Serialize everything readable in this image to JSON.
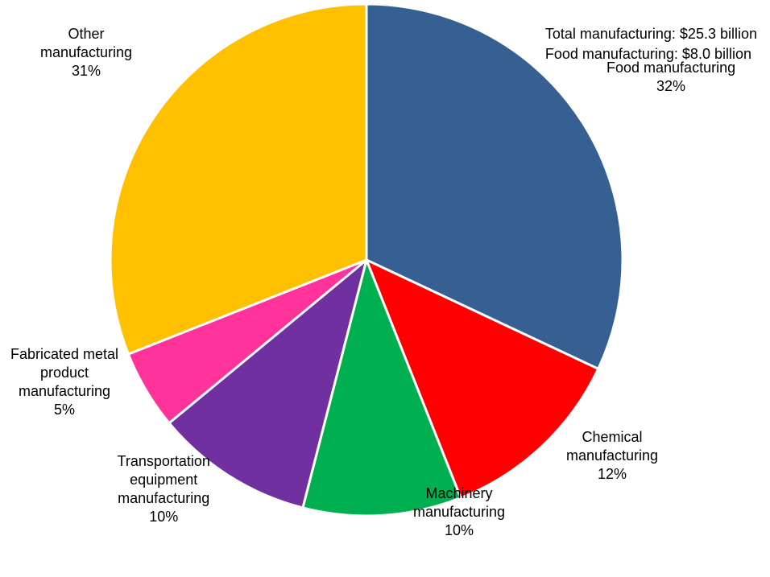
{
  "chart_data": {
    "type": "pie",
    "title": "",
    "annotation": [
      "Total manufacturing: $25.3 billion",
      "Food manufacturing: $8.0 billion"
    ],
    "start_angle_deg": 0,
    "direction": "clockwise",
    "slices": [
      {
        "label_lines": [
          "Food manufacturing"
        ],
        "pct_label": "32%",
        "value": 32,
        "color": "#376092"
      },
      {
        "label_lines": [
          "Chemical",
          "manufacturing"
        ],
        "pct_label": "12%",
        "value": 12,
        "color": "#ff0000"
      },
      {
        "label_lines": [
          "Machinery",
          "manufacturing"
        ],
        "pct_label": "10%",
        "value": 10,
        "color": "#00b050"
      },
      {
        "label_lines": [
          "Transportation",
          "equipment",
          "manufacturing"
        ],
        "pct_label": "10%",
        "value": 10,
        "color": "#7030a0"
      },
      {
        "label_lines": [
          "Fabricated metal",
          "product",
          "manufacturing"
        ],
        "pct_label": "5%",
        "value": 5,
        "color": "#ff3399"
      },
      {
        "label_lines": [
          "Other",
          "manufacturing"
        ],
        "pct_label": "31%",
        "value": 31,
        "color": "#ffc000"
      }
    ]
  }
}
